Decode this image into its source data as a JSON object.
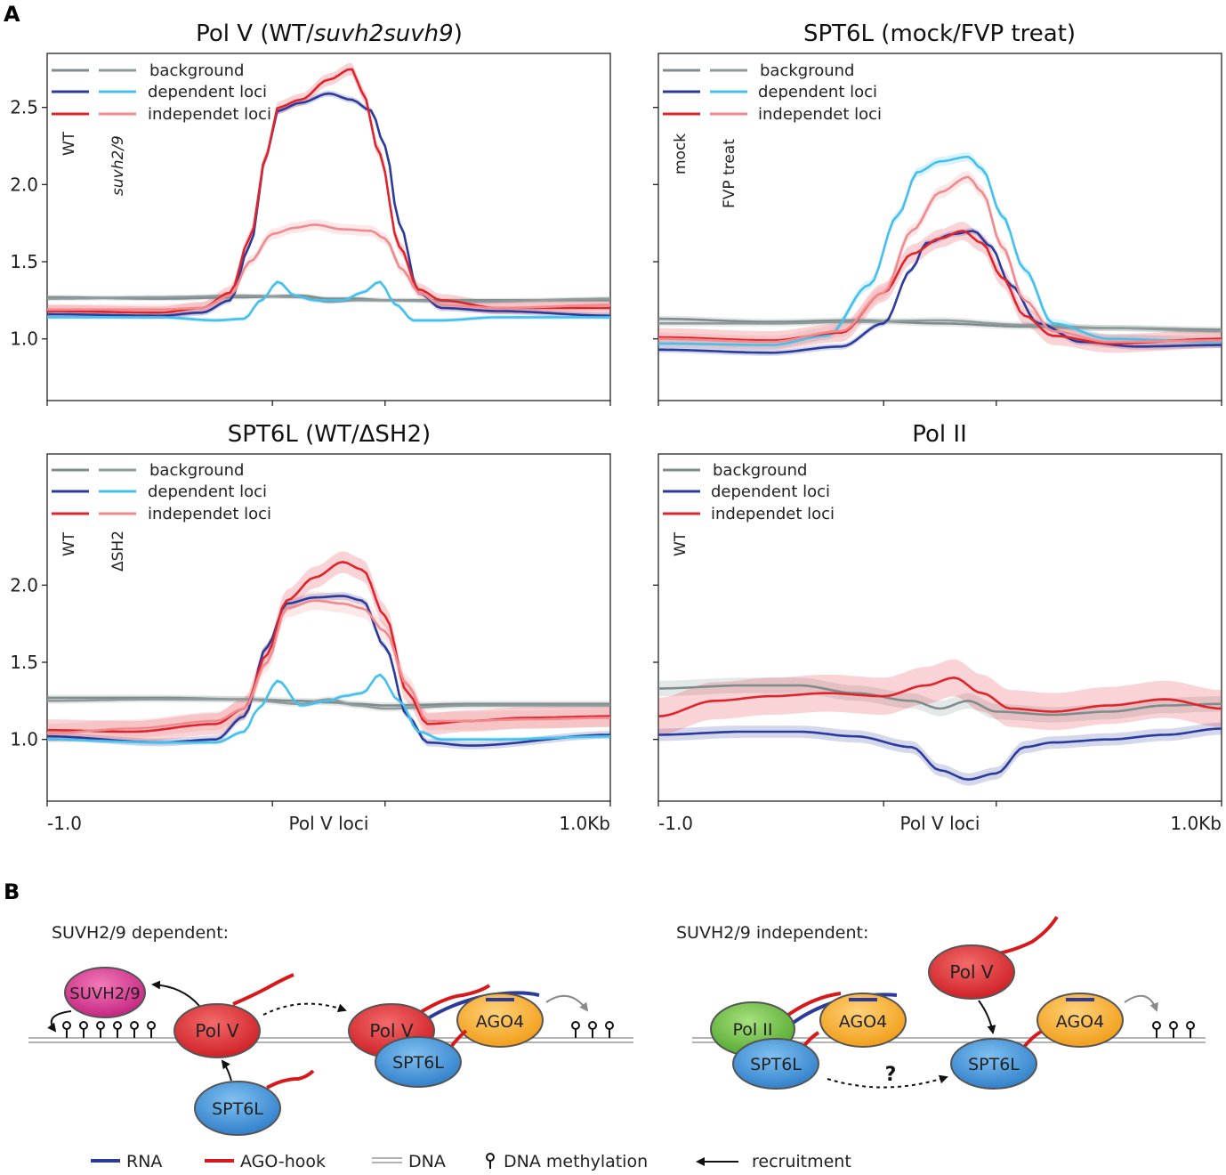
{
  "panel_labels": {
    "a": "A",
    "b": "B"
  },
  "colors": {
    "wt_background": "#7f8c8d",
    "mut_background": "#8f9a9b",
    "wt_dependent": "#2b3b9b",
    "mut_dependent": "#45c0ec",
    "wt_independent": "#e0242c",
    "mut_independent": "#f08a8e",
    "suvh": "#d4318e",
    "polv": "#e0242c",
    "spt6l": "#3f8fd6",
    "ago4": "#f5a623",
    "pol2": "#6ec04a",
    "rna": "#2b3b9b",
    "hook": "#d7191c"
  },
  "chart_data": [
    {
      "id": "p1",
      "type": "line",
      "title": "Pol V (WT/",
      "title_italic": "suvh2suvh9",
      "title_end": ")",
      "sample_labels": [
        "WT",
        "suvh2/9"
      ],
      "legend": [
        "background",
        "dependent loci",
        "independet loci"
      ],
      "ylim": [
        0.6,
        2.85
      ],
      "yticks": [
        1.0,
        1.5,
        2.0,
        2.5
      ],
      "ytick_labels": [
        "1.0",
        "1.5",
        "2.0",
        "2.5"
      ],
      "xlim": [
        -1.0,
        1.0
      ],
      "xaxis_labels": [],
      "series": [
        {
          "name": "background",
          "sample": "WT",
          "color_key": "wt_background",
          "band": 0.015,
          "x": [
            -1.0,
            -0.6,
            -0.3,
            -0.1,
            0.0,
            0.1,
            0.2,
            0.5,
            1.0
          ],
          "values": [
            1.27,
            1.26,
            1.27,
            1.28,
            1.26,
            1.26,
            1.25,
            1.25,
            1.25
          ]
        },
        {
          "name": "background",
          "sample": "suvh2/9",
          "color_key": "mut_background",
          "band": 0.015,
          "x": [
            -1.0,
            -0.6,
            -0.3,
            -0.1,
            0.0,
            0.1,
            0.2,
            0.5,
            1.0
          ],
          "values": [
            1.26,
            1.27,
            1.28,
            1.27,
            1.24,
            1.25,
            1.25,
            1.24,
            1.26
          ]
        },
        {
          "name": "dependent loci",
          "sample": "WT",
          "color_key": "wt_dependent",
          "band": 0.02,
          "x": [
            -1.0,
            -0.6,
            -0.45,
            -0.35,
            -0.28,
            -0.22,
            -0.18,
            -0.1,
            0.0,
            0.08,
            0.15,
            0.2,
            0.25,
            0.32,
            0.4,
            0.6,
            1.0
          ],
          "values": [
            1.16,
            1.15,
            1.17,
            1.25,
            1.6,
            2.2,
            2.48,
            2.53,
            2.59,
            2.55,
            2.48,
            2.25,
            1.75,
            1.3,
            1.2,
            1.18,
            1.15
          ]
        },
        {
          "name": "dependent loci",
          "sample": "suvh2/9",
          "color_key": "mut_dependent",
          "band": 0.015,
          "x": [
            -1.0,
            -0.6,
            -0.4,
            -0.3,
            -0.24,
            -0.18,
            -0.12,
            -0.05,
            0.05,
            0.12,
            0.18,
            0.24,
            0.3,
            0.4,
            0.6,
            1.0
          ],
          "values": [
            1.14,
            1.14,
            1.12,
            1.13,
            1.25,
            1.37,
            1.28,
            1.25,
            1.25,
            1.3,
            1.37,
            1.22,
            1.12,
            1.12,
            1.14,
            1.14
          ]
        },
        {
          "name": "independet loci",
          "sample": "WT",
          "color_key": "wt_independent",
          "band": 0.04,
          "x": [
            -1.0,
            -0.6,
            -0.45,
            -0.35,
            -0.28,
            -0.22,
            -0.18,
            -0.1,
            0.0,
            0.08,
            0.12,
            0.18,
            0.25,
            0.32,
            0.4,
            0.6,
            1.0
          ],
          "values": [
            1.18,
            1.17,
            1.2,
            1.3,
            1.65,
            2.2,
            2.5,
            2.55,
            2.68,
            2.75,
            2.6,
            2.2,
            1.6,
            1.32,
            1.25,
            1.2,
            1.2
          ]
        },
        {
          "name": "independet loci",
          "sample": "suvh2/9",
          "color_key": "mut_independent",
          "band": 0.035,
          "x": [
            -1.0,
            -0.6,
            -0.45,
            -0.35,
            -0.28,
            -0.2,
            -0.12,
            -0.05,
            0.05,
            0.15,
            0.2,
            0.26,
            0.32,
            0.4,
            0.6,
            1.0
          ],
          "values": [
            1.19,
            1.19,
            1.2,
            1.28,
            1.5,
            1.68,
            1.72,
            1.74,
            1.71,
            1.7,
            1.65,
            1.45,
            1.3,
            1.22,
            1.2,
            1.22
          ]
        }
      ]
    },
    {
      "id": "p2",
      "type": "line",
      "title": "SPT6L (mock/FVP treat)",
      "sample_labels": [
        "mock",
        "FVP treat"
      ],
      "legend": [
        "background",
        "dependent loci",
        "independet loci"
      ],
      "ylim": [
        0.6,
        2.85
      ],
      "yticks": [
        1.0,
        1.5,
        2.0,
        2.5
      ],
      "ytick_labels": [
        "",
        "",
        "",
        ""
      ],
      "xlim": [
        -1.0,
        1.0
      ],
      "xaxis_labels": [],
      "series": [
        {
          "name": "background",
          "sample": "mock",
          "color_key": "wt_background",
          "band": 0.02,
          "x": [
            -1.0,
            -0.6,
            -0.3,
            0.0,
            0.3,
            0.6,
            1.0
          ],
          "values": [
            1.13,
            1.11,
            1.12,
            1.1,
            1.08,
            1.07,
            1.06
          ]
        },
        {
          "name": "background",
          "sample": "FVP treat",
          "color_key": "mut_background",
          "band": 0.02,
          "x": [
            -1.0,
            -0.6,
            -0.3,
            0.0,
            0.3,
            0.6,
            1.0
          ],
          "values": [
            1.1,
            1.1,
            1.11,
            1.12,
            1.09,
            1.07,
            1.05
          ]
        },
        {
          "name": "dependent loci",
          "sample": "mock",
          "color_key": "wt_dependent",
          "band": 0.02,
          "x": [
            -1.0,
            -0.6,
            -0.35,
            -0.2,
            -0.1,
            -0.05,
            0.05,
            0.12,
            0.18,
            0.25,
            0.35,
            0.5,
            0.7,
            1.0
          ],
          "values": [
            0.93,
            0.91,
            0.95,
            1.1,
            1.45,
            1.62,
            1.68,
            1.7,
            1.6,
            1.35,
            1.1,
            0.98,
            0.95,
            0.96
          ]
        },
        {
          "name": "dependent loci",
          "sample": "FVP treat",
          "color_key": "mut_dependent",
          "band": 0.03,
          "x": [
            -1.0,
            -0.6,
            -0.4,
            -0.25,
            -0.15,
            -0.08,
            0.0,
            0.1,
            0.15,
            0.22,
            0.3,
            0.4,
            0.6,
            1.0
          ],
          "values": [
            0.97,
            0.96,
            1.02,
            1.35,
            1.8,
            2.08,
            2.15,
            2.18,
            2.1,
            1.8,
            1.45,
            1.1,
            1.0,
            0.98
          ]
        },
        {
          "name": "independet loci",
          "sample": "mock",
          "color_key": "wt_independent",
          "band": 0.06,
          "x": [
            -1.0,
            -0.6,
            -0.35,
            -0.2,
            -0.1,
            0.0,
            0.08,
            0.15,
            0.22,
            0.3,
            0.4,
            0.6,
            1.0
          ],
          "values": [
            1.01,
            0.99,
            1.04,
            1.3,
            1.55,
            1.65,
            1.7,
            1.62,
            1.4,
            1.15,
            1.02,
            0.97,
            1.0
          ]
        },
        {
          "name": "independet loci",
          "sample": "FVP treat",
          "color_key": "mut_independent",
          "band": 0.04,
          "x": [
            -1.0,
            -0.6,
            -0.35,
            -0.2,
            -0.1,
            0.0,
            0.1,
            0.15,
            0.22,
            0.3,
            0.4,
            0.6,
            1.0
          ],
          "values": [
            1.0,
            0.98,
            1.05,
            1.3,
            1.7,
            1.95,
            2.05,
            1.95,
            1.6,
            1.25,
            1.05,
            0.98,
            0.99
          ]
        }
      ]
    },
    {
      "id": "p3",
      "type": "line",
      "title": "SPT6L (WT/ΔSH2)",
      "sample_labels": [
        "WT",
        "ΔSH2"
      ],
      "legend": [
        "background",
        "dependent loci",
        "independet loci"
      ],
      "ylim": [
        0.6,
        2.85
      ],
      "yticks": [
        1.0,
        1.5,
        2.0
      ],
      "ytick_labels": [
        "1.0",
        "1.5",
        "2.0"
      ],
      "xlim": [
        -1.0,
        1.0
      ],
      "xaxis_labels": [
        "-1.0",
        "Pol V loci",
        "1.0Kb"
      ],
      "series": [
        {
          "name": "background",
          "sample": "WT",
          "color_key": "wt_background",
          "band": 0.02,
          "x": [
            -1.0,
            -0.6,
            -0.3,
            -0.1,
            0.0,
            0.1,
            0.2,
            0.5,
            1.0
          ],
          "values": [
            1.27,
            1.27,
            1.26,
            1.25,
            1.24,
            1.23,
            1.22,
            1.23,
            1.23
          ]
        },
        {
          "name": "background",
          "sample": "ΔSH2",
          "color_key": "mut_background",
          "band": 0.02,
          "x": [
            -1.0,
            -0.6,
            -0.3,
            -0.1,
            0.0,
            0.1,
            0.2,
            0.5,
            1.0
          ],
          "values": [
            1.25,
            1.26,
            1.26,
            1.23,
            1.26,
            1.22,
            1.2,
            1.22,
            1.22
          ]
        },
        {
          "name": "dependent loci",
          "sample": "WT",
          "color_key": "wt_dependent",
          "band": 0.025,
          "x": [
            -1.0,
            -0.6,
            -0.4,
            -0.3,
            -0.22,
            -0.15,
            -0.05,
            0.05,
            0.12,
            0.2,
            0.28,
            0.35,
            0.5,
            1.0
          ],
          "values": [
            1.02,
            0.98,
            1.0,
            1.15,
            1.6,
            1.88,
            1.92,
            1.93,
            1.9,
            1.6,
            1.15,
            0.98,
            0.96,
            1.03
          ]
        },
        {
          "name": "dependent loci",
          "sample": "ΔSH2",
          "color_key": "mut_dependent",
          "band": 0.015,
          "x": [
            -1.0,
            -0.6,
            -0.4,
            -0.3,
            -0.25,
            -0.18,
            -0.1,
            0.0,
            0.05,
            0.12,
            0.18,
            0.25,
            0.32,
            0.4,
            0.6,
            1.0
          ],
          "values": [
            1.0,
            0.98,
            0.98,
            1.05,
            1.2,
            1.38,
            1.22,
            1.25,
            1.28,
            1.3,
            1.42,
            1.25,
            1.05,
            1.0,
            1.0,
            1.02
          ]
        },
        {
          "name": "independet loci",
          "sample": "WT",
          "color_key": "wt_independent",
          "band": 0.07,
          "x": [
            -1.0,
            -0.7,
            -0.4,
            -0.3,
            -0.22,
            -0.15,
            -0.05,
            0.05,
            0.12,
            0.2,
            0.28,
            0.35,
            0.5,
            0.7,
            1.0
          ],
          "values": [
            1.06,
            1.05,
            1.1,
            1.2,
            1.55,
            1.9,
            2.05,
            2.15,
            2.1,
            1.8,
            1.3,
            1.1,
            1.12,
            1.14,
            1.15
          ]
        },
        {
          "name": "independet loci",
          "sample": "ΔSH2",
          "color_key": "mut_independent",
          "band": 0.06,
          "x": [
            -1.0,
            -0.7,
            -0.4,
            -0.3,
            -0.22,
            -0.15,
            -0.05,
            0.05,
            0.12,
            0.2,
            0.28,
            0.35,
            0.5,
            0.7,
            1.0
          ],
          "values": [
            1.04,
            1.07,
            1.12,
            1.2,
            1.5,
            1.85,
            1.9,
            1.88,
            1.85,
            1.7,
            1.35,
            1.12,
            1.12,
            1.13,
            1.14
          ]
        }
      ]
    },
    {
      "id": "p4",
      "type": "line",
      "title": "Pol II",
      "sample_labels": [
        "WT"
      ],
      "legend": [
        "background",
        "dependent loci",
        "independet loci"
      ],
      "ylim": [
        0.6,
        2.85
      ],
      "yticks": [
        1.0,
        1.5,
        2.0
      ],
      "ytick_labels": [
        "",
        "",
        ""
      ],
      "xlim": [
        -1.0,
        1.0
      ],
      "xaxis_labels": [
        "-1.0",
        "Pol V loci",
        "1.0Kb"
      ],
      "series": [
        {
          "name": "background",
          "sample": "WT",
          "color_key": "wt_background",
          "band": 0.05,
          "x": [
            -1.0,
            -0.7,
            -0.5,
            -0.3,
            -0.1,
            0.0,
            0.1,
            0.2,
            0.4,
            0.6,
            0.8,
            1.0
          ],
          "values": [
            1.33,
            1.35,
            1.35,
            1.3,
            1.25,
            1.2,
            1.25,
            1.18,
            1.16,
            1.18,
            1.22,
            1.23
          ]
        },
        {
          "name": "dependent loci",
          "sample": "WT",
          "color_key": "wt_dependent",
          "band": 0.04,
          "x": [
            -1.0,
            -0.7,
            -0.5,
            -0.3,
            -0.1,
            0.0,
            0.1,
            0.2,
            0.3,
            0.4,
            0.6,
            0.8,
            1.0
          ],
          "values": [
            1.03,
            1.05,
            1.05,
            1.02,
            0.95,
            0.8,
            0.74,
            0.78,
            0.95,
            0.98,
            1.0,
            1.03,
            1.07
          ]
        },
        {
          "name": "independet loci",
          "sample": "WT",
          "color_key": "wt_independent",
          "band": 0.12,
          "x": [
            -1.0,
            -0.8,
            -0.6,
            -0.4,
            -0.2,
            -0.05,
            0.05,
            0.15,
            0.25,
            0.4,
            0.6,
            0.8,
            1.0
          ],
          "values": [
            1.15,
            1.25,
            1.28,
            1.3,
            1.28,
            1.35,
            1.4,
            1.3,
            1.2,
            1.18,
            1.22,
            1.26,
            1.2
          ]
        }
      ]
    }
  ],
  "diagram": {
    "left_title": "SUVH2/9 dependent:",
    "right_title": "SUVH2/9 independent:",
    "suvh": "SUVH2/9",
    "pol_v": "Pol V",
    "spt6l": "SPT6L",
    "ago4": "AGO4",
    "pol_ii": "Pol II",
    "question": "?"
  },
  "key": {
    "rna": "RNA",
    "hook": "AGO-hook",
    "dna": "DNA",
    "methylation": "DNA methylation",
    "recruitment": "recruitment"
  }
}
